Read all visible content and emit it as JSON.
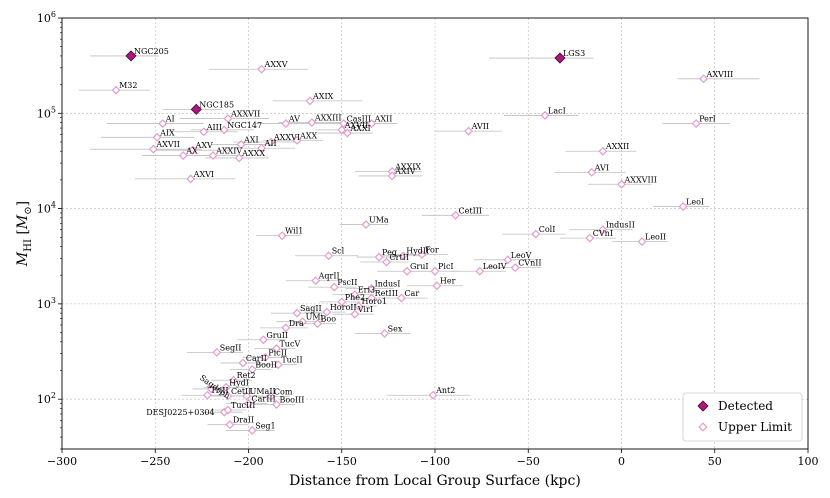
{
  "chart_data": {
    "type": "scatter",
    "xlabel": "Distance from Local Group Surface (kpc)",
    "ylabel": "M_HI [M_⊙]",
    "ylabel_main": "M",
    "ylabel_sub": "HI",
    "ylabel_unit_open": " [",
    "ylabel_unit_m": "M",
    "ylabel_unit_sub": "⊙",
    "ylabel_unit_close": "]",
    "xlim": [
      -300,
      100
    ],
    "ylim": [
      30,
      1000000
    ],
    "yscale": "log",
    "grid": true,
    "legend_position": "lower-right",
    "x_ticks": [
      -300,
      -250,
      -200,
      -150,
      -100,
      -50,
      0,
      50,
      100
    ],
    "x_tick_labels": [
      "−300",
      "−250",
      "−200",
      "−150",
      "−100",
      "−50",
      "0",
      "50",
      "100"
    ],
    "y_ticks": [
      100,
      1000,
      10000,
      100000,
      1000000
    ],
    "y_tick_base": "10",
    "y_tick_exps": [
      "2",
      "3",
      "4",
      "5",
      "6"
    ],
    "colors": {
      "detected": "#b0157e",
      "upper_limit": "#e39ccd",
      "errorbar": "#bfbfbf",
      "grid": "#b8b8b8"
    },
    "series": [
      {
        "name": "Detected",
        "marker": "filled-diamond",
        "points": [
          {
            "label": "NGC205",
            "x": -263,
            "y": 400000,
            "xerr": [
              22,
              15
            ]
          },
          {
            "label": "NGC185",
            "x": -228,
            "y": 110000,
            "xerr": [
              18,
              14
            ]
          },
          {
            "label": "LGS3",
            "x": -33,
            "y": 380000,
            "xerr": [
              38,
              18
            ]
          }
        ]
      },
      {
        "name": "Upper Limit",
        "marker": "open-diamond",
        "points": [
          {
            "label": "AXXV",
            "x": -193,
            "y": 290000,
            "xerr": [
              28,
              25
            ]
          },
          {
            "label": "M32",
            "x": -271,
            "y": 175000,
            "xerr": [
              20,
              18
            ]
          },
          {
            "label": "AXVIII",
            "x": 44,
            "y": 230000,
            "xerr": [
              14,
              30
            ]
          },
          {
            "label": "AXIX",
            "x": -167,
            "y": 135000,
            "xerr": [
              20,
              28
            ]
          },
          {
            "label": "LacI",
            "x": -41,
            "y": 95000,
            "xerr": [
              22,
              18
            ]
          },
          {
            "label": "PerI",
            "x": 40,
            "y": 78000,
            "xerr": [
              18,
              18
            ]
          },
          {
            "label": "AVII",
            "x": -82,
            "y": 65000,
            "xerr": [
              18,
              18
            ]
          },
          {
            "label": "AI",
            "x": -246,
            "y": 78000,
            "xerr": [
              30,
              22
            ]
          },
          {
            "label": "AXXVII",
            "x": -211,
            "y": 88000,
            "xerr": [
              26,
              22
            ]
          },
          {
            "label": "AV",
            "x": -180,
            "y": 78000,
            "xerr": [
              16,
              14
            ]
          },
          {
            "label": "AXXIII",
            "x": -166,
            "y": 80000,
            "xerr": [
              18,
              16
            ]
          },
          {
            "label": "CasIII",
            "x": -149,
            "y": 78000,
            "xerr": [
              16,
              14
            ]
          },
          {
            "label": "AXII",
            "x": -134,
            "y": 78000,
            "xerr": [
              18,
              14
            ]
          },
          {
            "label": "AIII",
            "x": -224,
            "y": 64000,
            "xerr": [
              20,
              18
            ]
          },
          {
            "label": "NGC147",
            "x": -213,
            "y": 67000,
            "xerr": [
              18,
              16
            ]
          },
          {
            "label": "AXVII",
            "x": -150,
            "y": 67000,
            "xerr": [
              14,
              12
            ]
          },
          {
            "label": "AXXI",
            "x": -147,
            "y": 62000,
            "xerr": [
              16,
              14
            ]
          },
          {
            "label": "AIX",
            "x": -249,
            "y": 56000,
            "xerr": [
              30,
              20
            ]
          },
          {
            "label": "AXXVI",
            "x": -188,
            "y": 50000,
            "xerr": [
              20,
              16
            ]
          },
          {
            "label": "AXX",
            "x": -174,
            "y": 52000,
            "xerr": [
              18,
              14
            ]
          },
          {
            "label": "AXI",
            "x": -204,
            "y": 47000,
            "xerr": [
              16,
              14
            ]
          },
          {
            "label": "AII",
            "x": -193,
            "y": 43000,
            "xerr": [
              20,
              18
            ]
          },
          {
            "label": "AXVII",
            "x": -251,
            "y": 42000,
            "xerr": [
              34,
              26
            ]
          },
          {
            "label": "AXV",
            "x": -230,
            "y": 41000,
            "xerr": [
              22,
              20
            ]
          },
          {
            "label": "AX",
            "x": -235,
            "y": 36000,
            "xerr": [
              22,
              18
            ]
          },
          {
            "label": "AXXIV",
            "x": -219,
            "y": 36000,
            "xerr": [
              18,
              16
            ]
          },
          {
            "label": "AXXX",
            "x": -205,
            "y": 34000,
            "xerr": [
              18,
              16
            ]
          },
          {
            "label": "AXXII",
            "x": -10,
            "y": 40000,
            "xerr": [
              20,
              18
            ]
          },
          {
            "label": "AVI",
            "x": -16,
            "y": 24000,
            "xerr": [
              20,
              18
            ]
          },
          {
            "label": "AXXIX",
            "x": -123,
            "y": 24500,
            "xerr": [
              20,
              16
            ]
          },
          {
            "label": "AXIV",
            "x": -123,
            "y": 22000,
            "xerr": [
              18,
              16
            ]
          },
          {
            "label": "AXVI",
            "x": -231,
            "y": 20500,
            "xerr": [
              30,
              24
            ]
          },
          {
            "label": "AXXVIII",
            "x": 0,
            "y": 18000,
            "xerr": [
              18,
              16
            ]
          },
          {
            "label": "LeoI",
            "x": 33,
            "y": 10500,
            "xerr": [
              16,
              14
            ]
          },
          {
            "label": "CetIII",
            "x": -89,
            "y": 8500,
            "xerr": [
              18,
              18
            ]
          },
          {
            "label": "UMa",
            "x": -137,
            "y": 6800,
            "xerr": [
              14,
              12
            ]
          },
          {
            "label": "ColI",
            "x": -46,
            "y": 5400,
            "xerr": [
              18,
              16
            ]
          },
          {
            "label": "IndusII",
            "x": -10,
            "y": 6000,
            "xerr": [
              18,
              16
            ]
          },
          {
            "label": "CVnI",
            "x": -17,
            "y": 4900,
            "xerr": [
              16,
              14
            ]
          },
          {
            "label": "LeoII",
            "x": 11,
            "y": 4500,
            "xerr": [
              16,
              14
            ]
          },
          {
            "label": "Wil1",
            "x": -182,
            "y": 5200,
            "xerr": [
              14,
              10
            ]
          },
          {
            "label": "Scl",
            "x": -157,
            "y": 3200,
            "xerr": [
              18,
              16
            ]
          },
          {
            "label": "Peg",
            "x": -130,
            "y": 3100,
            "xerr": [
              12,
              10
            ]
          },
          {
            "label": "HydII",
            "x": -117,
            "y": 3200,
            "xerr": [
              14,
              12
            ]
          },
          {
            "label": "For",
            "x": -107,
            "y": 3300,
            "xerr": [
              16,
              14
            ]
          },
          {
            "label": "CrtII",
            "x": -126,
            "y": 2750,
            "xerr": [
              14,
              12
            ]
          },
          {
            "label": "GruI",
            "x": -115,
            "y": 2200,
            "xerr": [
              16,
              14
            ]
          },
          {
            "label": "PicI",
            "x": -100,
            "y": 2200,
            "xerr": [
              14,
              12
            ]
          },
          {
            "label": "LeoV",
            "x": -61,
            "y": 2900,
            "xerr": [
              18,
              16
            ]
          },
          {
            "label": "CVnII",
            "x": -57,
            "y": 2400,
            "xerr": [
              16,
              14
            ]
          },
          {
            "label": "LeoIV",
            "x": -76,
            "y": 2200,
            "xerr": [
              16,
              14
            ]
          },
          {
            "label": "AqrII",
            "x": -164,
            "y": 1750,
            "xerr": [
              16,
              14
            ]
          },
          {
            "label": "PscII",
            "x": -154,
            "y": 1500,
            "xerr": [
              14,
              12
            ]
          },
          {
            "label": "IndusI",
            "x": -134,
            "y": 1450,
            "xerr": [
              14,
              12
            ]
          },
          {
            "label": "Her",
            "x": -99,
            "y": 1550,
            "xerr": [
              16,
              14
            ]
          },
          {
            "label": "Eri3",
            "x": -143,
            "y": 1250,
            "xerr": [
              12,
              10
            ]
          },
          {
            "label": "RetIII",
            "x": -134,
            "y": 1150,
            "xerr": [
              12,
              10
            ]
          },
          {
            "label": "Car",
            "x": -118,
            "y": 1150,
            "xerr": [
              16,
              14
            ]
          },
          {
            "label": "Phe2",
            "x": -150,
            "y": 1050,
            "xerr": [
              12,
              10
            ]
          },
          {
            "label": "Horo1",
            "x": -141,
            "y": 950,
            "xerr": [
              12,
              10
            ]
          },
          {
            "label": "SagII",
            "x": -174,
            "y": 800,
            "xerr": [
              14,
              12
            ]
          },
          {
            "label": "HoroII",
            "x": -158,
            "y": 820,
            "xerr": [
              12,
              10
            ]
          },
          {
            "label": "VirI",
            "x": -143,
            "y": 780,
            "xerr": [
              12,
              10
            ]
          },
          {
            "label": "UMi",
            "x": -171,
            "y": 650,
            "xerr": [
              14,
              12
            ]
          },
          {
            "label": "Boo",
            "x": -163,
            "y": 620,
            "xerr": [
              12,
              10
            ]
          },
          {
            "label": "Dra",
            "x": -180,
            "y": 560,
            "xerr": [
              14,
              12
            ]
          },
          {
            "label": "Sex",
            "x": -127,
            "y": 490,
            "xerr": [
              16,
              14
            ]
          },
          {
            "label": "GruII",
            "x": -192,
            "y": 420,
            "xerr": [
              14,
              12
            ]
          },
          {
            "label": "TucV",
            "x": -185,
            "y": 340,
            "xerr": [
              12,
              10
            ]
          },
          {
            "label": "SegII",
            "x": -217,
            "y": 310,
            "xerr": [
              16,
              14
            ]
          },
          {
            "label": "PicII",
            "x": -191,
            "y": 275,
            "xerr": [
              12,
              10
            ]
          },
          {
            "label": "CarII",
            "x": -203,
            "y": 240,
            "xerr": [
              12,
              10
            ]
          },
          {
            "label": "TucII",
            "x": -184,
            "y": 230,
            "xerr": [
              12,
              10
            ]
          },
          {
            "label": "BooII",
            "x": -198,
            "y": 205,
            "xerr": [
              12,
              10
            ]
          },
          {
            "label": "Ret2",
            "x": -208,
            "y": 158,
            "xerr": [
              12,
              10
            ]
          },
          {
            "label": "HydI",
            "x": -212,
            "y": 133,
            "xerr": [
              12,
              10
            ]
          },
          {
            "label": "Sagdsph",
            "x": -220,
            "y": 128,
            "xerr": [
              10,
              10
            ]
          },
          {
            "label": "TriII",
            "x": -222,
            "y": 110,
            "xerr": [
              14,
              12
            ]
          },
          {
            "label": "CetII",
            "x": -211,
            "y": 108,
            "xerr": [
              12,
              10
            ]
          },
          {
            "label": "UMaII",
            "x": -201,
            "y": 108,
            "xerr": [
              12,
              10
            ]
          },
          {
            "label": "Com",
            "x": -188,
            "y": 107,
            "xerr": [
              12,
              10
            ]
          },
          {
            "label": "CarIII",
            "x": -200,
            "y": 90,
            "xerr": [
              12,
              10
            ]
          },
          {
            "label": "BooIII",
            "x": -185,
            "y": 88,
            "xerr": [
              12,
              10
            ]
          },
          {
            "label": "Ant2",
            "x": -101,
            "y": 110,
            "xerr": [
              25,
              20
            ]
          },
          {
            "label": "DESJ0225+0304",
            "x": -213,
            "y": 73,
            "xerr": [
              12,
              10
            ]
          },
          {
            "label": "TucIII",
            "x": -211,
            "y": 77,
            "xerr": [
              10,
              10
            ]
          },
          {
            "label": "DraII",
            "x": -210,
            "y": 54,
            "xerr": [
              12,
              10
            ]
          },
          {
            "label": "Seg1",
            "x": -198,
            "y": 47,
            "xerr": [
              14,
              12
            ]
          }
        ]
      }
    ],
    "legend": [
      "Detected",
      "Upper Limit"
    ]
  }
}
